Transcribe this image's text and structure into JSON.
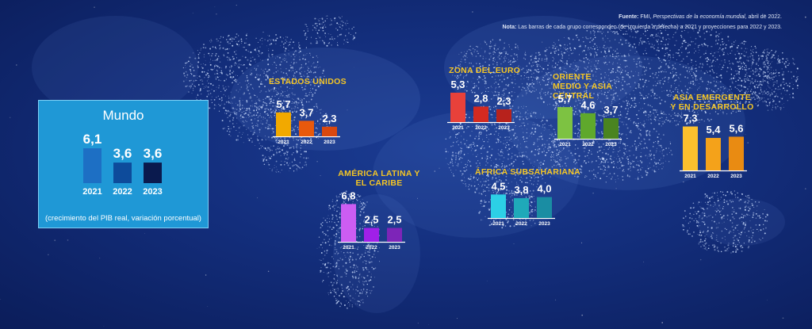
{
  "source": {
    "fuente_label": "Fuente:",
    "fuente_pre": " FMI, ",
    "fuente_italic": "Perspectivas de la economía mundial",
    "fuente_post": ", abril de 2022.",
    "nota_label": "Nota:",
    "nota_text": " Las barras de cada grupo corresponden (de izquierda a derecha) a 2021 y proyecciones para 2022 y 2023."
  },
  "mundo": {
    "title": "Mundo",
    "caption": "(crecimiento del PIB real, variación porcentual)"
  },
  "chart_data": [
    {
      "type": "bar",
      "region": "Mundo",
      "categories": [
        "2021",
        "2022",
        "2023"
      ],
      "values": [
        6.1,
        3.6,
        3.6
      ],
      "value_labels": [
        "6,1",
        "3,6",
        "3,6"
      ],
      "colors": [
        "#1d6fc4",
        "#0d4b9b",
        "#0a1a4e"
      ]
    },
    {
      "type": "bar",
      "title": "ESTADOS UNIDOS",
      "categories": [
        "2021",
        "2022",
        "2023"
      ],
      "values": [
        5.7,
        3.7,
        2.3
      ],
      "value_labels": [
        "5,7",
        "3,7",
        "2,3"
      ],
      "colors": [
        "#f2a900",
        "#e8590c",
        "#d9480f"
      ]
    },
    {
      "type": "bar",
      "title": "ZONA DEL EURO",
      "categories": [
        "2021",
        "2022",
        "2023"
      ],
      "values": [
        5.3,
        2.8,
        2.3
      ],
      "value_labels": [
        "5,3",
        "2,8",
        "2,3"
      ],
      "colors": [
        "#e8413a",
        "#d42a20",
        "#b7221c"
      ]
    },
    {
      "type": "bar",
      "title": "ORIENTE MEDIO Y ASIA CENTRAL",
      "categories": [
        "2021",
        "2022",
        "2023"
      ],
      "values": [
        5.7,
        4.6,
        3.7
      ],
      "value_labels": [
        "5,7",
        "4,6",
        "3,7"
      ],
      "colors": [
        "#7dc242",
        "#5fa82c",
        "#4a8420"
      ]
    },
    {
      "type": "bar",
      "title": "ASIA EMERGENTE Y EN DESARROLLO",
      "categories": [
        "2021",
        "2022",
        "2023"
      ],
      "values": [
        7.3,
        5.4,
        5.6
      ],
      "value_labels": [
        "7,3",
        "5,4",
        "5,6"
      ],
      "colors": [
        "#fbc02d",
        "#f4a21a",
        "#e98b12"
      ]
    },
    {
      "type": "bar",
      "title": "AMÉRICA LATINA Y EL CARIBE",
      "categories": [
        "2021",
        "2022",
        "2023"
      ],
      "values": [
        6.8,
        2.5,
        2.5
      ],
      "value_labels": [
        "6,8",
        "2,5",
        "2,5"
      ],
      "colors": [
        "#cc5df2",
        "#a020e8",
        "#7d25b8"
      ]
    },
    {
      "type": "bar",
      "title": "ÁFRICA SUBSAHARIANA",
      "categories": [
        "2021",
        "2022",
        "2023"
      ],
      "values": [
        4.5,
        3.8,
        4.0
      ],
      "value_labels": [
        "4,5",
        "3,8",
        "4,0"
      ],
      "colors": [
        "#2cd0e6",
        "#1fa9b9",
        "#1a8da3"
      ]
    }
  ]
}
